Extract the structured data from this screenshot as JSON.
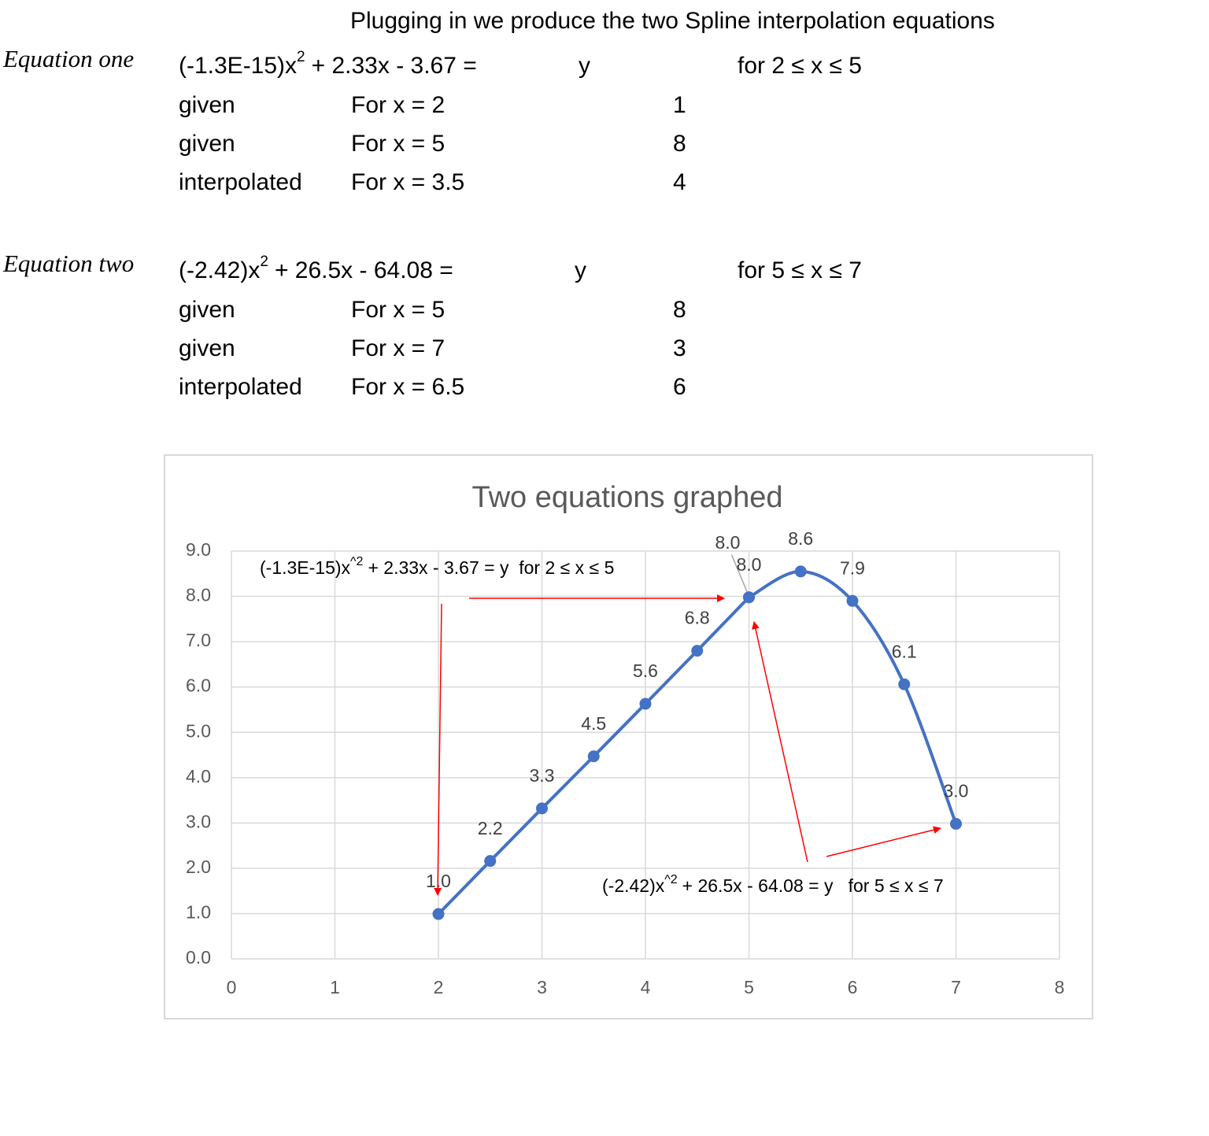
{
  "heading": "Plugging in we produce the two Spline interpolation equations",
  "equations": [
    {
      "label": "Equation one",
      "formula_start": "(-1.3E-15)x",
      "exponent": "2",
      "formula_end": "+ 2.33x - 3.67 =",
      "result": "y",
      "domain": "for 2 ≤ x ≤ 5",
      "rows": [
        [
          "given",
          "For x = 2",
          1
        ],
        [
          "given",
          "For x = 5",
          8
        ],
        [
          "interpolated",
          "For x = 3.5",
          4
        ]
      ]
    },
    {
      "label": "Equation two",
      "formula_start": "(-2.42)x",
      "exponent": "2",
      "formula_end": "+ 26.5x - 64.08 =",
      "result": "y",
      "domain": "for 5 ≤ x ≤ 7",
      "rows": [
        [
          "given",
          "For x = 5",
          8
        ],
        [
          "given",
          "For x = 7",
          3
        ],
        [
          "interpolated",
          "For x = 6.5",
          6
        ]
      ]
    }
  ],
  "chart_data": {
    "type": "line",
    "title": "Two equations graphed",
    "series": [
      {
        "color": "#4472c4",
        "smooth": false,
        "x": [
          2,
          2.5,
          3,
          3.5,
          4,
          4.5,
          5
        ],
        "values": [
          0.99,
          2.16,
          3.32,
          4.47,
          5.63,
          6.8,
          7.98
        ],
        "value_labels": [
          "1.0",
          "2.2",
          "3.3",
          "4.5",
          "5.6",
          "6.8",
          "8.0"
        ]
      },
      {
        "color": "#4472c4",
        "smooth": true,
        "x": [
          5,
          5.5,
          6,
          6.5,
          7
        ],
        "values": [
          7.98,
          8.55,
          7.9,
          6.06,
          2.98
        ],
        "value_labels": [
          "8.0",
          "8.6",
          "7.9",
          "6.1",
          "3.0"
        ]
      }
    ],
    "annotations": [
      {
        "start": "(-1.3E-15)x",
        "exponent": "^2",
        "end": "+ 2.33x - 3.67 = y  for 2 ≤ x ≤ 5"
      },
      {
        "start": "(-2.42)x",
        "exponent": "^2",
        "end": "+ 26.5x - 64.08 = y   for 5 ≤ x ≤ 7"
      }
    ],
    "xlim": [
      0,
      8
    ],
    "xticks": [
      0,
      1,
      2,
      3,
      4,
      5,
      6,
      7,
      8
    ],
    "ylim": [
      0,
      9
    ],
    "yticks": [
      {
        "value": 0,
        "label": "0.0"
      },
      {
        "value": 1,
        "label": "1.0"
      },
      {
        "value": 2,
        "label": "2.0"
      },
      {
        "value": 3,
        "label": "3.0"
      },
      {
        "value": 4,
        "label": "4.0"
      },
      {
        "value": 5,
        "label": "5.0"
      },
      {
        "value": 6,
        "label": "6.0"
      },
      {
        "value": 7,
        "label": "7.0"
      },
      {
        "value": 8,
        "label": "8.0"
      },
      {
        "value": 9,
        "label": "9.0"
      }
    ],
    "grid": true
  }
}
